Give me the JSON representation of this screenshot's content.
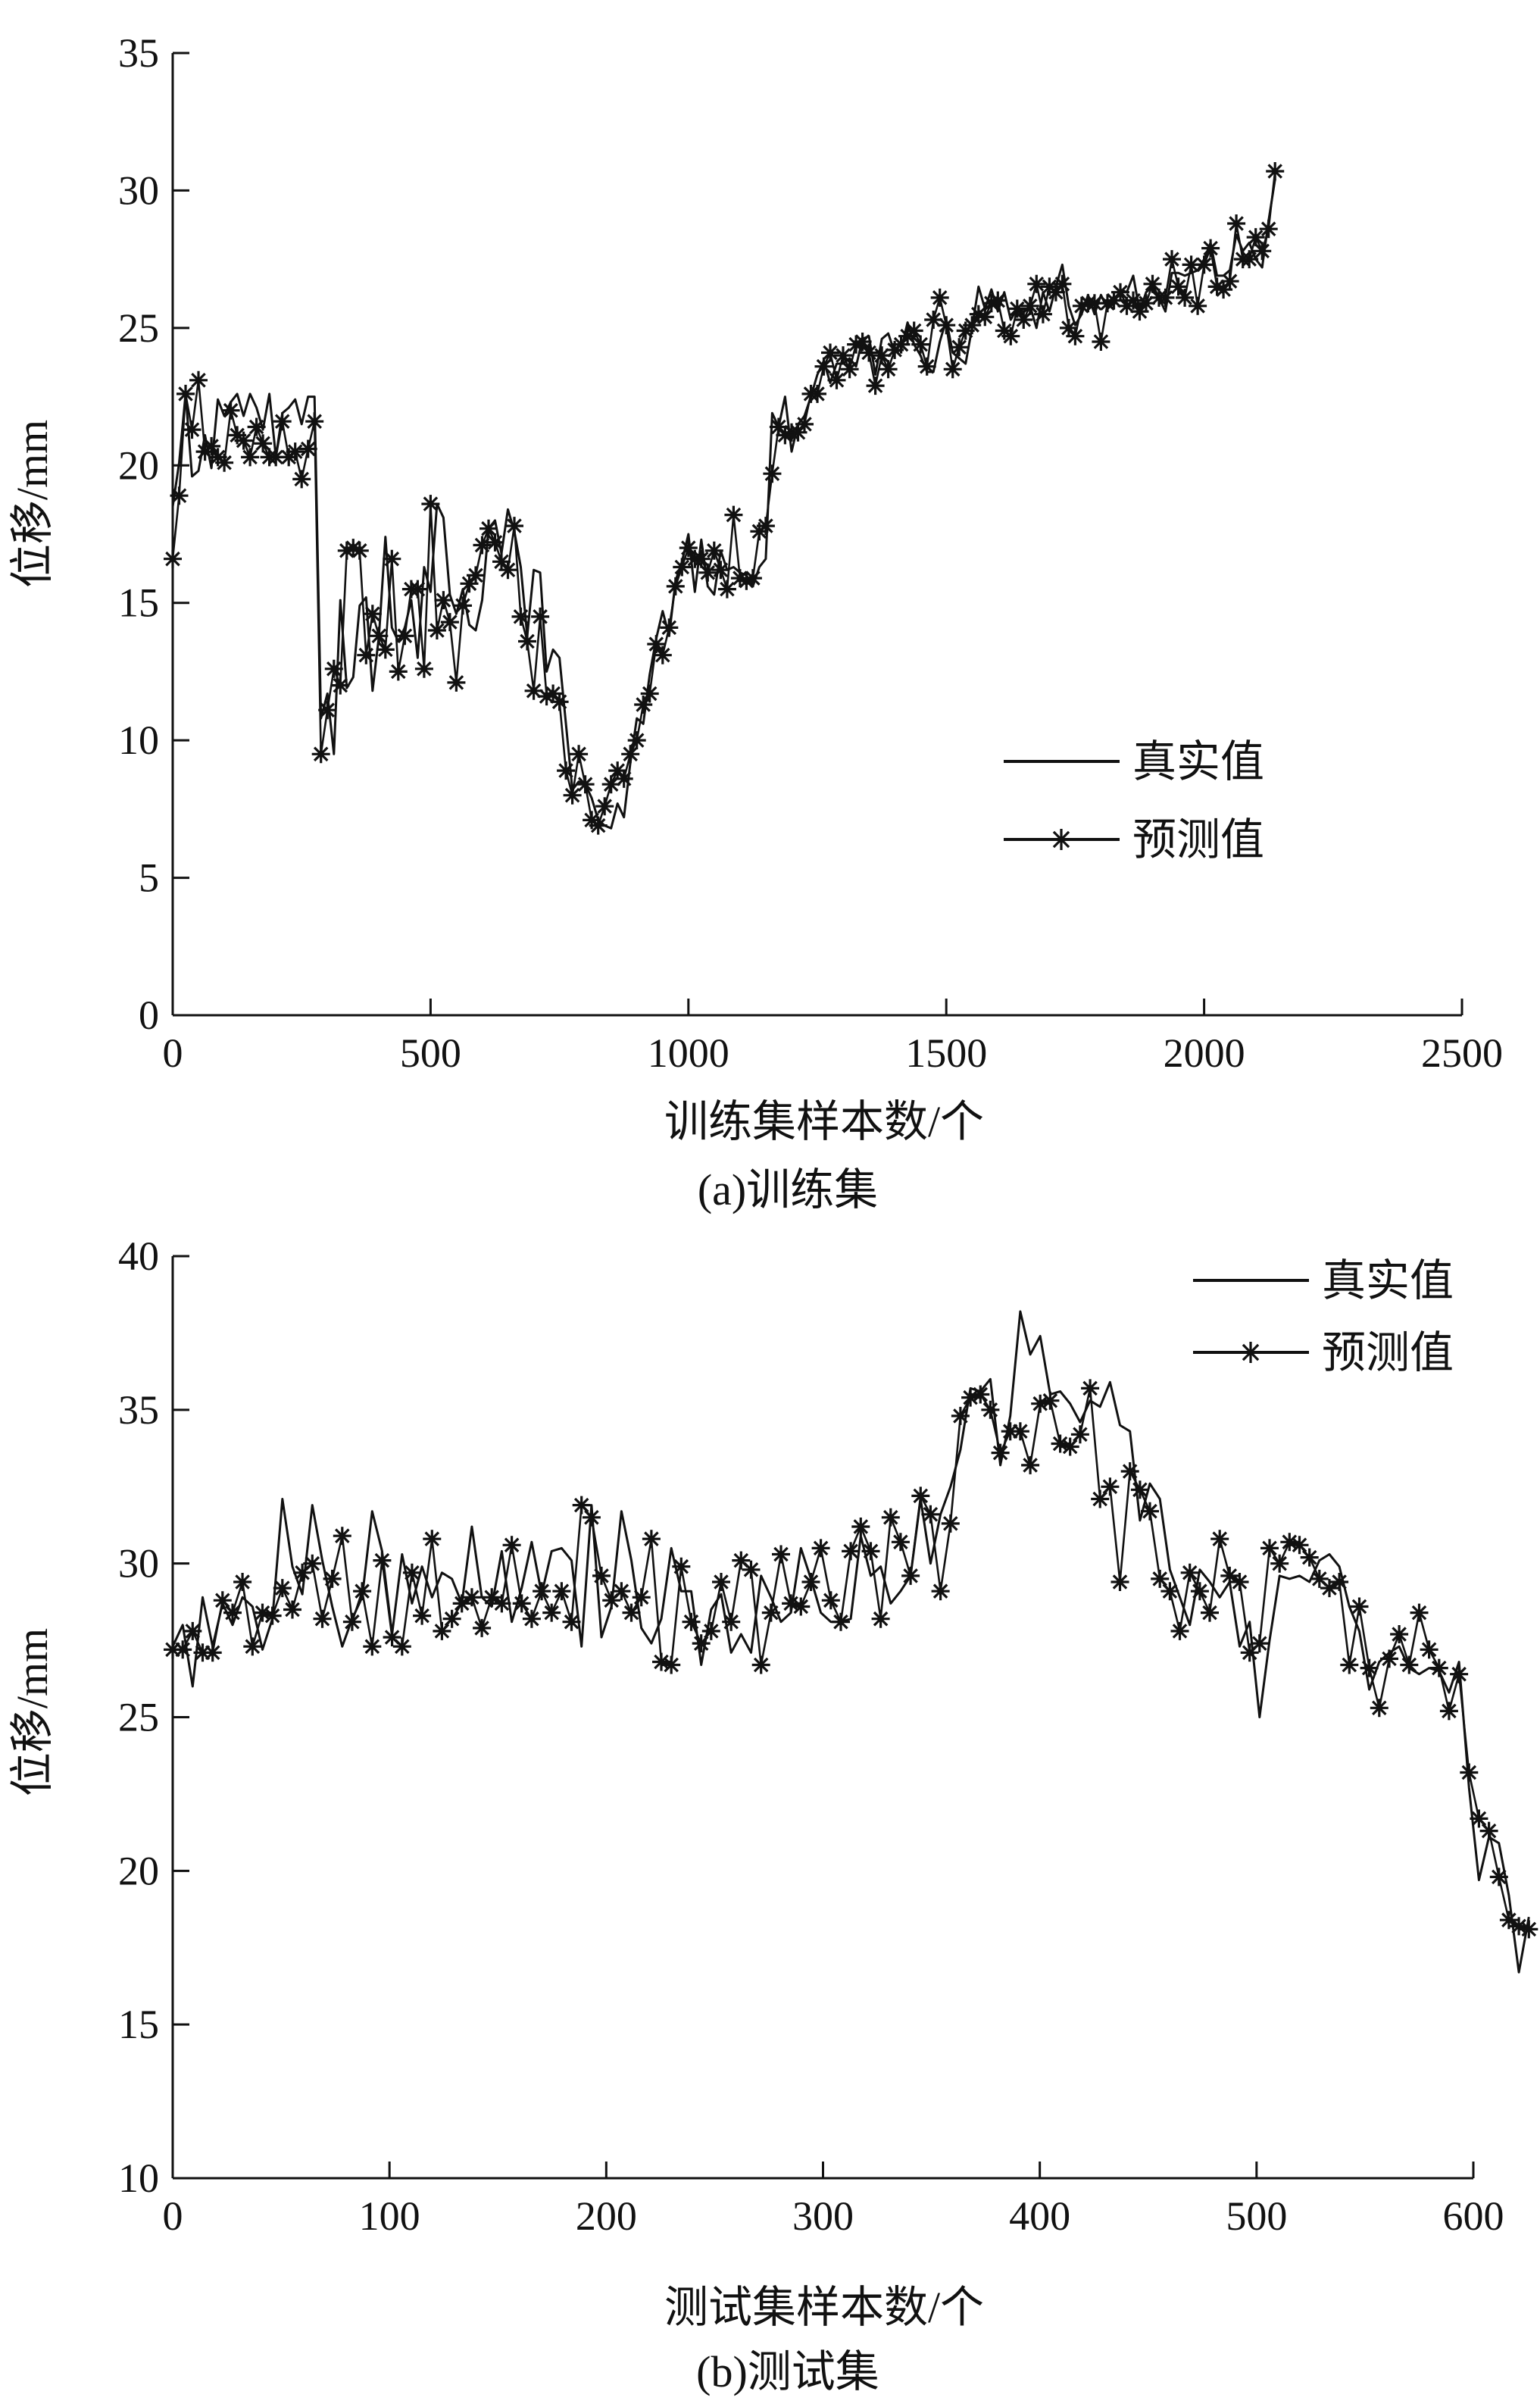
{
  "chart_data": [
    {
      "type": "line",
      "caption": "(a)训练集",
      "title": "",
      "xlabel": "训练集样本数/个",
      "ylabel": "位移/mm",
      "xlim": [
        0,
        2500
      ],
      "ylim": [
        0,
        35
      ],
      "xticks": [
        0,
        500,
        1000,
        1500,
        2000,
        2500
      ],
      "yticks": [
        0,
        5,
        10,
        15,
        20,
        25,
        30,
        35
      ],
      "grid": false,
      "legend_position": "lower-right",
      "x_step": 12.5,
      "x_start": 0,
      "series": [
        {
          "name": "真实值",
          "marker": "none",
          "values": [
            18.5,
            20.1,
            22.6,
            19.6,
            19.8,
            21.1,
            19.9,
            22.4,
            21.8,
            22.3,
            22.6,
            21.8,
            22.6,
            22.1,
            21.3,
            22.6,
            20.3,
            21.9,
            22.1,
            22.4,
            21.5,
            22.5,
            22.5,
            10.8,
            11.7,
            9.5,
            15.1,
            11.9,
            12.3,
            14.9,
            15.2,
            11.8,
            13.8,
            17.4,
            14.1,
            13.6,
            14.1,
            15.1,
            13.0,
            16.3,
            15.4,
            18.6,
            18.1,
            15.3,
            14.6,
            15.5,
            14.2,
            14.0,
            15.1,
            17.7,
            18.0,
            16.8,
            18.4,
            17.6,
            16.3,
            13.8,
            16.2,
            16.1,
            12.5,
            13.3,
            13.0,
            10.6,
            8.2,
            8.5,
            8.4,
            7.9,
            7.1,
            6.9,
            6.8,
            7.7,
            7.2,
            9.2,
            10.8,
            10.6,
            12.4,
            13.7,
            14.7,
            13.8,
            15.8,
            16.5,
            17.5,
            15.4,
            17.3,
            15.6,
            15.3,
            16.9,
            16.2,
            16.3,
            16.1,
            16.0,
            15.6,
            16.3,
            16.6,
            21.9,
            21.4,
            22.5,
            20.5,
            21.5,
            21.8,
            22.5,
            23.3,
            23.8,
            23.0,
            23.7,
            23.7,
            23.9,
            23.6,
            24.6,
            24.7,
            23.3,
            24.6,
            24.8,
            24.1,
            24.2,
            25.2,
            24.4,
            24.0,
            23.4,
            23.4,
            24.5,
            25.3,
            24.1,
            23.9,
            23.7,
            25.0,
            26.5,
            25.7,
            26.4,
            25.6,
            26.3,
            25.3,
            25.7,
            25.6,
            25.8,
            25.0,
            26.3,
            25.6,
            26.5,
            27.3,
            25.8,
            25.1,
            25.5,
            26.2,
            25.5,
            26.2,
            25.7,
            25.9,
            26.4,
            26.3,
            26.9,
            25.6,
            26.3,
            26.5,
            26.1,
            25.6,
            27.0,
            27.0,
            26.9,
            27.0,
            27.1,
            27.5,
            28.1,
            26.9,
            26.9,
            27.1,
            28.4,
            27.8,
            28.1,
            27.5,
            27.2,
            28.9,
            30.4
          ]
        },
        {
          "name": "预测值",
          "marker": "asterisk",
          "values": [
            16.6,
            18.9,
            22.6,
            21.3,
            23.1,
            20.5,
            20.7,
            20.3,
            20.1,
            22.0,
            21.1,
            20.9,
            20.3,
            21.4,
            20.8,
            20.3,
            20.3,
            21.6,
            20.3,
            20.5,
            19.5,
            20.6,
            21.6,
            9.5,
            11.1,
            12.6,
            12.0,
            16.9,
            17.0,
            16.9,
            13.1,
            14.6,
            13.8,
            13.3,
            16.6,
            12.5,
            13.8,
            15.5,
            15.5,
            12.6,
            18.6,
            14.0,
            15.1,
            14.3,
            12.1,
            14.9,
            15.7,
            16.0,
            17.1,
            17.7,
            17.2,
            16.5,
            16.2,
            17.8,
            14.5,
            13.6,
            11.8,
            14.5,
            11.6,
            11.7,
            11.4,
            8.9,
            8.0,
            9.5,
            8.4,
            7.1,
            6.9,
            7.6,
            8.4,
            8.9,
            8.6,
            9.5,
            10.0,
            11.3,
            11.7,
            13.5,
            13.1,
            14.1,
            15.6,
            16.3,
            17.0,
            16.6,
            16.6,
            16.1,
            16.9,
            16.2,
            15.5,
            18.2,
            15.9,
            15.8,
            15.9,
            17.6,
            17.8,
            19.7,
            21.4,
            21.1,
            21.2,
            21.2,
            21.5,
            22.6,
            22.6,
            23.6,
            24.1,
            23.1,
            24.0,
            23.5,
            24.4,
            24.5,
            24.1,
            22.9,
            24.0,
            23.5,
            24.2,
            24.4,
            24.7,
            24.9,
            24.4,
            23.6,
            25.3,
            26.1,
            25.1,
            23.5,
            24.3,
            24.9,
            25.1,
            25.5,
            25.4,
            25.9,
            26.0,
            24.9,
            24.7,
            25.7,
            25.3,
            25.8,
            26.6,
            25.5,
            26.5,
            26.3,
            26.6,
            25.0,
            24.7,
            25.8,
            25.9,
            25.9,
            24.5,
            25.9,
            26.0,
            26.3,
            25.8,
            26.0,
            25.6,
            25.9,
            26.6,
            26.1,
            26.1,
            27.5,
            26.5,
            26.1,
            27.3,
            25.8,
            27.3,
            27.9,
            26.5,
            26.4,
            26.7,
            28.8,
            27.5,
            27.5,
            28.3,
            27.8,
            28.6,
            30.7
          ]
        }
      ]
    },
    {
      "type": "line",
      "caption": "(b)测试集",
      "title": "",
      "xlabel": "测试集样本数/个",
      "ylabel": "位移/mm",
      "xlim": [
        0,
        600
      ],
      "ylim": [
        10,
        40
      ],
      "xticks": [
        0,
        100,
        200,
        300,
        400,
        500,
        600
      ],
      "yticks": [
        10,
        15,
        20,
        25,
        30,
        35,
        40
      ],
      "grid": false,
      "legend_position": "top-right",
      "x_step": 4.6,
      "x_start": 0,
      "series": [
        {
          "name": "真实值",
          "marker": "none",
          "values": [
            27.3,
            28.0,
            26.0,
            28.9,
            27.3,
            28.7,
            28.0,
            28.9,
            28.6,
            27.2,
            28.2,
            32.1,
            29.9,
            29.0,
            31.9,
            30.1,
            28.6,
            27.3,
            28.2,
            28.9,
            31.7,
            30.4,
            27.7,
            30.3,
            28.7,
            29.9,
            28.9,
            29.7,
            29.5,
            28.7,
            31.2,
            28.9,
            28.6,
            30.4,
            28.1,
            29.2,
            30.7,
            29.0,
            30.4,
            30.5,
            30.1,
            27.3,
            31.9,
            27.6,
            28.6,
            31.7,
            30.1,
            27.9,
            27.4,
            28.2,
            30.5,
            29.1,
            29.1,
            26.7,
            28.5,
            29.0,
            27.1,
            27.7,
            27.1,
            29.6,
            28.9,
            28.1,
            28.4,
            30.5,
            29.5,
            28.4,
            28.1,
            28.1,
            28.2,
            30.9,
            29.6,
            29.9,
            28.7,
            29.1,
            29.6,
            32.1,
            30.0,
            31.6,
            32.5,
            33.7,
            35.7,
            35.6,
            36.0,
            33.2,
            34.8,
            38.2,
            36.8,
            37.4,
            35.5,
            35.6,
            35.2,
            34.6,
            35.3,
            35.1,
            35.9,
            34.5,
            34.3,
            31.4,
            32.6,
            32.1,
            29.8,
            28.9,
            28.0,
            29.8,
            29.4,
            28.9,
            29.4,
            27.3,
            28.1,
            25.0,
            27.5,
            29.6,
            29.5,
            29.6,
            29.4,
            30.1,
            30.3,
            29.9,
            28.6,
            27.8,
            25.9,
            26.8,
            27.1,
            27.3,
            26.6,
            26.4,
            26.6,
            26.5,
            25.8,
            26.8,
            22.7,
            19.7,
            21.1,
            20.9,
            19.2,
            16.7,
            18.5
          ]
        },
        {
          "name": "预测值",
          "marker": "asterisk",
          "values": [
            27.2,
            27.2,
            27.8,
            27.1,
            27.1,
            28.8,
            28.4,
            29.4,
            27.3,
            28.4,
            28.3,
            29.2,
            28.5,
            29.7,
            30.0,
            28.2,
            29.5,
            30.9,
            28.1,
            29.1,
            27.3,
            30.1,
            27.6,
            27.3,
            29.7,
            28.3,
            30.8,
            27.8,
            28.2,
            28.7,
            28.9,
            27.9,
            28.9,
            28.7,
            30.6,
            28.7,
            28.2,
            29.1,
            28.4,
            29.1,
            28.1,
            31.9,
            31.5,
            29.6,
            28.8,
            29.1,
            28.4,
            28.9,
            30.8,
            26.8,
            26.7,
            29.9,
            28.1,
            27.4,
            27.8,
            29.4,
            28.1,
            30.1,
            29.8,
            26.7,
            28.4,
            30.3,
            28.7,
            28.6,
            29.4,
            30.5,
            28.8,
            28.1,
            30.4,
            31.2,
            30.4,
            28.2,
            31.5,
            30.7,
            29.6,
            32.2,
            31.6,
            29.1,
            31.3,
            34.8,
            35.4,
            35.5,
            35.0,
            33.6,
            34.3,
            34.3,
            33.2,
            35.2,
            35.3,
            33.9,
            33.8,
            34.2,
            35.7,
            32.1,
            32.5,
            29.4,
            33.0,
            32.4,
            31.7,
            29.5,
            29.1,
            27.8,
            29.7,
            29.1,
            28.4,
            30.8,
            29.6,
            29.4,
            27.1,
            27.4,
            30.5,
            30.0,
            30.7,
            30.6,
            30.2,
            29.5,
            29.2,
            29.4,
            26.7,
            28.6,
            26.6,
            25.3,
            26.9,
            27.7,
            26.7,
            28.4,
            27.2,
            26.6,
            25.2,
            26.4,
            23.2,
            21.7,
            21.3,
            19.8,
            18.4,
            18.2,
            18.1
          ]
        }
      ]
    }
  ]
}
